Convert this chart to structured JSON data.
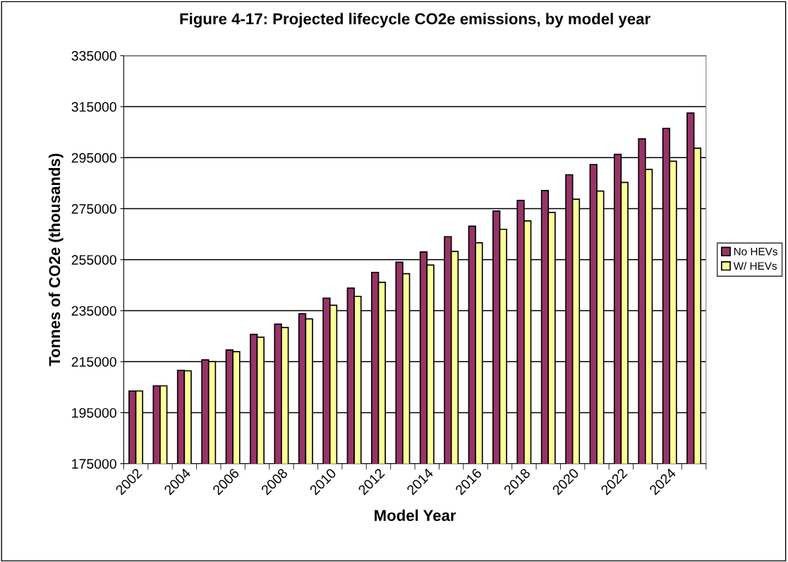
{
  "chart_data": {
    "type": "bar",
    "title": "Figure 4-17: Projected lifecycle CO2e emissions, by model year",
    "xlabel": "Model Year",
    "ylabel": "Tonnes of CO2e (thousands)",
    "categories": [
      "2002",
      null,
      "2004",
      null,
      "2006",
      null,
      "2008",
      null,
      "2010",
      null,
      "2012",
      null,
      "2014",
      null,
      "2016",
      null,
      "2018",
      null,
      "2020",
      null,
      "2022",
      null,
      "2024",
      null
    ],
    "series": [
      {
        "name": "No HEVs",
        "color": "#993366",
        "values": [
          203500,
          205500,
          211600,
          215700,
          219600,
          225700,
          229700,
          233800,
          239900,
          243800,
          250000,
          254000,
          258000,
          264000,
          268100,
          274100,
          278200,
          282100,
          288300,
          292300,
          296300,
          302400,
          306500,
          312500
        ]
      },
      {
        "name": "W/ HEVs",
        "color": "#ffff99",
        "values": [
          203500,
          205500,
          211400,
          215000,
          218900,
          224600,
          228400,
          231800,
          237100,
          240600,
          246100,
          249500,
          252900,
          258200,
          261600,
          266900,
          270200,
          273500,
          278700,
          281900,
          285300,
          290400,
          293600,
          298700
        ]
      }
    ],
    "ylim": [
      175000,
      335000
    ],
    "yticks": [
      175000,
      195000,
      215000,
      235000,
      255000,
      275000,
      295000,
      315000,
      335000
    ],
    "grid": "y",
    "legend": "right"
  }
}
